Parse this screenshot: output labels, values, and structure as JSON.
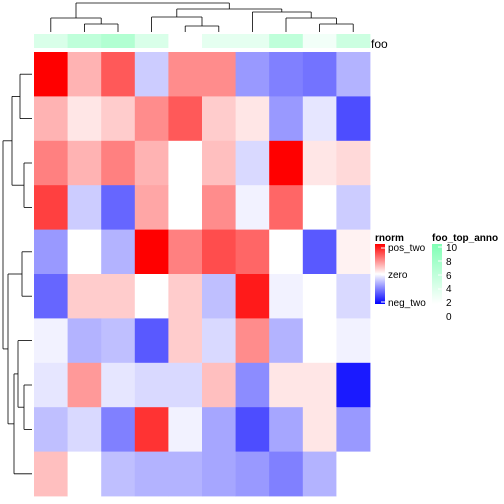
{
  "chart_data": {
    "type": "heatmap",
    "rows": 10,
    "cols": 10,
    "values": [
      [
        2.0,
        0.6,
        1.3,
        -0.4,
        0.9,
        0.9,
        -0.8,
        -1.0,
        -1.1,
        -0.6
      ],
      [
        0.6,
        0.2,
        0.4,
        0.9,
        1.3,
        0.4,
        0.2,
        -0.8,
        -0.2,
        -1.4
      ],
      [
        1.0,
        0.6,
        1.0,
        0.6,
        0.0,
        0.5,
        -0.3,
        2.0,
        0.2,
        0.3
      ],
      [
        1.5,
        -0.4,
        -1.2,
        0.7,
        0.0,
        0.9,
        -0.1,
        1.2,
        0.0,
        -0.4
      ],
      [
        -0.8,
        0.0,
        -0.6,
        2.0,
        1.0,
        1.4,
        1.2,
        0.0,
        -1.3,
        0.1
      ],
      [
        -1.2,
        0.4,
        0.4,
        0.0,
        0.4,
        -0.5,
        1.8,
        -0.1,
        0.0,
        -0.3
      ],
      [
        -0.1,
        -0.6,
        -0.5,
        -1.3,
        0.4,
        -0.3,
        0.9,
        -0.6,
        0.0,
        -0.1
      ],
      [
        -0.2,
        0.8,
        -0.2,
        -0.3,
        -0.3,
        0.5,
        -0.9,
        0.2,
        0.2,
        -1.8
      ],
      [
        -0.5,
        -0.3,
        -1.0,
        1.6,
        -0.1,
        -0.7,
        -1.4,
        -0.7,
        0.2,
        -0.8
      ],
      [
        0.5,
        0.0,
        -0.5,
        -0.6,
        -0.6,
        -0.7,
        -0.8,
        -1.0,
        -0.6,
        0.0
      ]
    ],
    "top_annotation": {
      "name": "foo",
      "values": [
        3,
        5,
        6,
        3,
        0,
        2,
        2,
        5,
        1,
        4
      ]
    },
    "legends": [
      {
        "title": "rnorm",
        "labels": [
          "pos_two",
          "zero",
          "neg_two"
        ],
        "colors": [
          "#ff0000",
          "#ffffff",
          "#0000ff"
        ]
      },
      {
        "title": "foo_top_anno",
        "labels": [
          "10",
          "8",
          "6",
          "4",
          "2",
          "0"
        ],
        "colors": [
          "#ffffff",
          "#7fffb4"
        ]
      }
    ]
  }
}
